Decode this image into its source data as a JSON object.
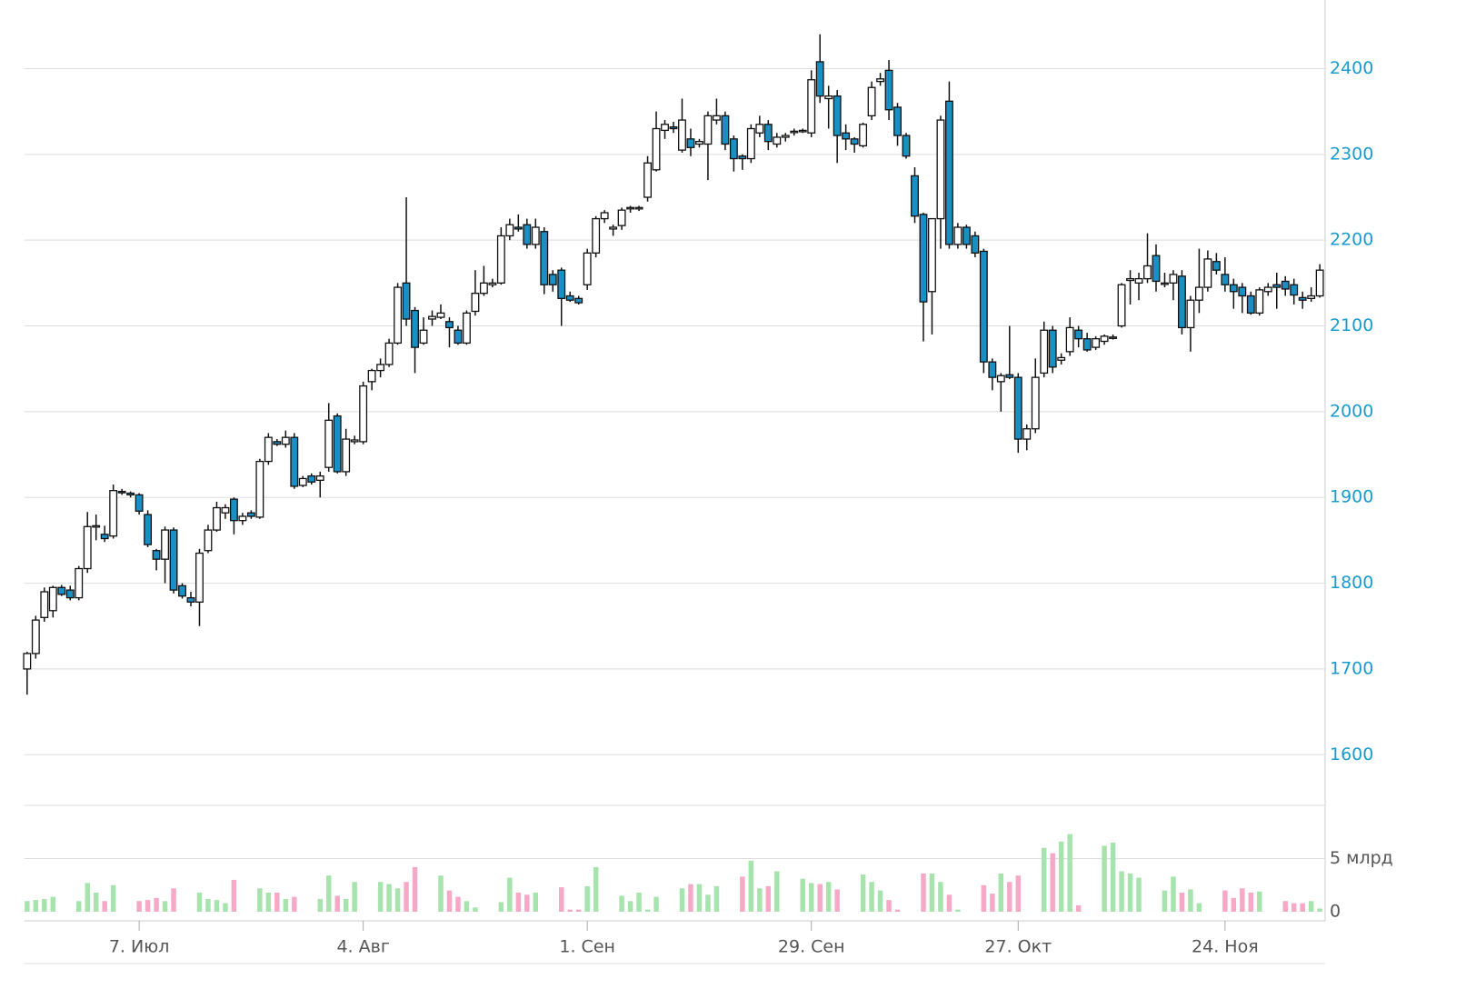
{
  "chart_data": {
    "type": "candlestick",
    "open": [
      1700,
      1718,
      1760,
      1768,
      1795,
      1792,
      1783,
      1817,
      1866,
      1857,
      1855,
      1907,
      1905,
      1903,
      1880,
      1838,
      1828,
      1862,
      1797,
      1783,
      1778,
      1838,
      1862,
      1882,
      1898,
      1873,
      1882,
      1877,
      1942,
      1965,
      1962,
      1970,
      1914,
      1925,
      1920,
      1935,
      1995,
      1930,
      1965,
      1965,
      2035,
      2048,
      2055,
      2080,
      2150,
      2118,
      2080,
      2108,
      2110,
      2105,
      2095,
      2080,
      2117,
      2138,
      2148,
      2150,
      2205,
      2215,
      2218,
      2195,
      2210,
      2160,
      2165,
      2135,
      2132,
      2148,
      2185,
      2225,
      2213,
      2217,
      2237,
      2237,
      2250,
      2282,
      2328,
      2332,
      2305,
      2318,
      2312,
      2312,
      2340,
      2345,
      2318,
      2298,
      2295,
      2325,
      2335,
      2312,
      2320,
      2326,
      2327,
      2325,
      2408,
      2365,
      2368,
      2325,
      2318,
      2310,
      2345,
      2385,
      2398,
      2355,
      2322,
      2275,
      2230,
      2140,
      2225,
      2362,
      2195,
      2215,
      2205,
      2187,
      2058,
      2035,
      2043,
      2040,
      1968,
      1980,
      2045,
      2095,
      2060,
      2070,
      2095,
      2085,
      2075,
      2082,
      2087,
      2100,
      2153,
      2150,
      2155,
      2182,
      2150,
      2150,
      2158,
      2098,
      2130,
      2145,
      2175,
      2160,
      2148,
      2145,
      2135,
      2115,
      2140,
      2148,
      2152,
      2148,
      2133,
      2132,
      2135
    ],
    "high": [
      1720,
      1762,
      1795,
      1797,
      1798,
      1797,
      1820,
      1883,
      1880,
      1867,
      1915,
      1910,
      1907,
      1905,
      1885,
      1840,
      1866,
      1865,
      1800,
      1790,
      1840,
      1868,
      1895,
      1892,
      1900,
      1882,
      1885,
      1945,
      1975,
      1968,
      1978,
      1975,
      1925,
      1928,
      1930,
      2010,
      1998,
      1980,
      1972,
      2035,
      2050,
      2062,
      2085,
      2150,
      2250,
      2122,
      2110,
      2118,
      2125,
      2110,
      2100,
      2118,
      2165,
      2170,
      2155,
      2215,
      2225,
      2230,
      2225,
      2225,
      2215,
      2165,
      2168,
      2140,
      2135,
      2190,
      2228,
      2235,
      2218,
      2238,
      2240,
      2240,
      2298,
      2350,
      2340,
      2338,
      2365,
      2330,
      2318,
      2350,
      2365,
      2350,
      2322,
      2300,
      2335,
      2345,
      2340,
      2325,
      2325,
      2330,
      2330,
      2398,
      2440,
      2380,
      2375,
      2335,
      2320,
      2337,
      2385,
      2395,
      2410,
      2360,
      2325,
      2285,
      2232,
      2225,
      2345,
      2385,
      2220,
      2218,
      2210,
      2190,
      2062,
      2045,
      2100,
      2045,
      1985,
      2062,
      2105,
      2100,
      2068,
      2110,
      2100,
      2092,
      2088,
      2090,
      2090,
      2150,
      2165,
      2162,
      2208,
      2195,
      2162,
      2165,
      2165,
      2135,
      2190,
      2188,
      2185,
      2180,
      2155,
      2150,
      2140,
      2145,
      2150,
      2162,
      2158,
      2155,
      2140,
      2145,
      2172
    ],
    "low": [
      1670,
      1712,
      1755,
      1760,
      1785,
      1780,
      1780,
      1812,
      1850,
      1848,
      1852,
      1903,
      1900,
      1880,
      1842,
      1815,
      1800,
      1788,
      1782,
      1773,
      1750,
      1835,
      1860,
      1875,
      1857,
      1868,
      1875,
      1875,
      1938,
      1960,
      1958,
      1910,
      1912,
      1915,
      1900,
      1930,
      1928,
      1925,
      1962,
      1962,
      2025,
      2040,
      2052,
      2078,
      2100,
      2045,
      2078,
      2100,
      2108,
      2075,
      2078,
      2078,
      2112,
      2135,
      2145,
      2148,
      2200,
      2210,
      2190,
      2190,
      2137,
      2140,
      2100,
      2128,
      2125,
      2142,
      2180,
      2220,
      2205,
      2212,
      2232,
      2234,
      2245,
      2280,
      2318,
      2325,
      2302,
      2298,
      2308,
      2270,
      2335,
      2305,
      2280,
      2282,
      2290,
      2320,
      2305,
      2308,
      2315,
      2322,
      2325,
      2320,
      2360,
      2330,
      2290,
      2305,
      2302,
      2308,
      2340,
      2380,
      2340,
      2310,
      2295,
      2220,
      2082,
      2090,
      2190,
      2190,
      2190,
      2190,
      2180,
      2045,
      2025,
      2000,
      2038,
      1952,
      1955,
      1975,
      2040,
      2045,
      2055,
      2065,
      2075,
      2070,
      2072,
      2078,
      2084,
      2098,
      2125,
      2130,
      2150,
      2140,
      2145,
      2130,
      2090,
      2070,
      2115,
      2140,
      2160,
      2140,
      2120,
      2115,
      2113,
      2112,
      2135,
      2120,
      2135,
      2125,
      2120,
      2128,
      2133
    ],
    "close": [
      1718,
      1757,
      1790,
      1795,
      1787,
      1783,
      1817,
      1866,
      1867,
      1852,
      1908,
      1906,
      1903,
      1884,
      1845,
      1828,
      1862,
      1792,
      1785,
      1778,
      1835,
      1862,
      1888,
      1888,
      1873,
      1878,
      1878,
      1942,
      1970,
      1962,
      1970,
      1913,
      1922,
      1918,
      1925,
      1990,
      1930,
      1968,
      1967,
      2030,
      2048,
      2055,
      2080,
      2145,
      2108,
      2075,
      2095,
      2111,
      2115,
      2098,
      2080,
      2115,
      2138,
      2150,
      2150,
      2205,
      2218,
      2213,
      2195,
      2215,
      2148,
      2148,
      2132,
      2130,
      2127,
      2185,
      2225,
      2232,
      2215,
      2235,
      2238,
      2238,
      2290,
      2330,
      2335,
      2330,
      2340,
      2308,
      2315,
      2345,
      2345,
      2312,
      2295,
      2295,
      2330,
      2335,
      2315,
      2320,
      2322,
      2327,
      2328,
      2387,
      2368,
      2368,
      2322,
      2318,
      2312,
      2335,
      2378,
      2388,
      2352,
      2322,
      2298,
      2228,
      2128,
      2225,
      2340,
      2195,
      2215,
      2195,
      2185,
      2058,
      2040,
      2042,
      2040,
      1968,
      1980,
      2040,
      2095,
      2052,
      2063,
      2098,
      2085,
      2072,
      2085,
      2088,
      2087,
      2148,
      2155,
      2155,
      2170,
      2152,
      2150,
      2160,
      2098,
      2130,
      2145,
      2178,
      2165,
      2148,
      2140,
      2135,
      2115,
      2142,
      2145,
      2145,
      2143,
      2136,
      2130,
      2135,
      2165
    ],
    "volume": [
      1.0,
      1.1,
      1.2,
      1.4,
      null,
      null,
      1.0,
      2.7,
      1.8,
      1.0,
      2.5,
      null,
      null,
      1.0,
      1.1,
      1.3,
      1.0,
      2.2,
      null,
      null,
      1.8,
      1.2,
      1.1,
      0.8,
      3.0,
      null,
      null,
      2.2,
      1.8,
      1.8,
      1.2,
      1.4,
      null,
      null,
      1.2,
      3.4,
      1.5,
      1.2,
      2.8,
      null,
      null,
      2.8,
      2.6,
      2.2,
      2.8,
      4.2,
      null,
      null,
      3.4,
      2.0,
      1.4,
      1.0,
      0.4,
      null,
      null,
      0.9,
      3.2,
      1.8,
      1.6,
      1.8,
      null,
      null,
      2.3,
      0.2,
      0.2,
      2.4,
      4.2,
      null,
      null,
      1.5,
      1.0,
      1.8,
      0.2,
      1.4,
      null,
      null,
      2.2,
      2.6,
      2.6,
      1.6,
      2.4,
      null,
      null,
      3.3,
      4.8,
      2.2,
      2.4,
      3.8,
      null,
      null,
      3.1,
      2.7,
      2.6,
      2.8,
      2.1,
      null,
      null,
      3.5,
      2.8,
      2.0,
      1.1,
      0.2,
      null,
      null,
      3.6,
      3.6,
      2.8,
      1.6,
      0.2,
      null,
      null,
      2.5,
      1.7,
      3.6,
      2.8,
      3.4,
      null,
      null,
      6.0,
      5.5,
      6.6,
      7.3,
      0.6,
      null,
      null,
      6.2,
      6.5,
      3.8,
      3.6,
      3.2,
      null,
      null,
      2.0,
      3.3,
      1.8,
      2.1,
      0.8,
      null,
      null,
      2.0,
      1.3,
      2.2,
      1.8,
      1.9,
      null,
      null,
      1.0,
      0.8,
      0.8,
      1.0,
      0.3
    ],
    "ylim": [
      1560,
      2480
    ],
    "yticks": [
      1600,
      1700,
      1800,
      1900,
      2000,
      2100,
      2200,
      2300,
      2400
    ],
    "xlim": [
      -0.3,
      150.3
    ],
    "xticks": [
      {
        "value": 13,
        "label": "7. Июл"
      },
      {
        "value": 39,
        "label": "4. Авг"
      },
      {
        "value": 65,
        "label": "1. Сен"
      },
      {
        "value": 91,
        "label": "29. Сен"
      },
      {
        "value": 115,
        "label": "27. Окт"
      },
      {
        "value": 139,
        "label": "24. Ноя"
      }
    ],
    "volume_ylim": [
      0,
      10
    ],
    "volume_ticks": [
      0,
      {
        "value": 5,
        "label": "5 млрд"
      }
    ],
    "up_color": "#ffffff",
    "down_color": "#1a8fc4",
    "volume_up_color": "#a6e3ad",
    "volume_down_color": "#f6a9c6",
    "grid": true
  }
}
